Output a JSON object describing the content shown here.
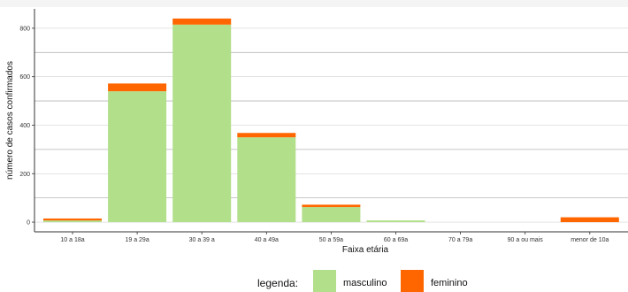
{
  "chart_data": {
    "type": "bar",
    "stacked": true,
    "title": "",
    "xlabel": "Faixa etária",
    "ylabel": "número de casos confirmados",
    "categories": [
      "10 a 18a",
      "19 a 29a",
      "30 a 39 a",
      "40 a 49a",
      "50 a 59a",
      "60 a 69a",
      "70 a 79a",
      "90 a ou mais",
      "menor de 10a"
    ],
    "series": [
      {
        "name": "masculino",
        "color": "#b2df8a",
        "values": [
          7,
          540,
          815,
          350,
          62,
          7,
          0,
          0,
          0
        ]
      },
      {
        "name": "feminino",
        "color": "#ff6600",
        "values": [
          8,
          32,
          25,
          18,
          10,
          0,
          0,
          0,
          20
        ]
      }
    ],
    "ylim": [
      -40,
      880
    ],
    "yticks": [
      0,
      200,
      400,
      600,
      800
    ],
    "grid": "horizontal",
    "legend": {
      "title": "legenda:",
      "position": "bottom"
    }
  }
}
